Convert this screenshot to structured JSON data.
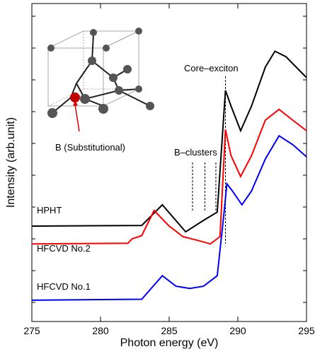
{
  "chart_data": {
    "type": "line",
    "x_label": "Photon energy (eV)",
    "y_label": "Intensity (arb.unit)",
    "xlim": [
      275,
      295
    ],
    "xticks": [
      275,
      280,
      285,
      290,
      295
    ],
    "ylim": [
      -0.6,
      9.4
    ],
    "yticks": [
      0,
      1,
      2,
      3,
      4,
      5,
      6,
      7,
      8,
      9
    ],
    "series": [
      {
        "name": "HPHT",
        "color": "#000000",
        "x": [
          275,
          283,
          284.5,
          286.2,
          287.5,
          288.5,
          289.1,
          289.5,
          290.2,
          291,
          292,
          292.7,
          293.5,
          294.5,
          295
        ],
        "values": [
          2.4,
          2.42,
          3.07,
          2.22,
          2.58,
          2.84,
          6.67,
          6.18,
          5.4,
          6.18,
          7.4,
          7.9,
          7.73,
          7.29,
          7.07
        ]
      },
      {
        "name": "HFCVD No.2",
        "color": "#ff0000",
        "x": [
          275,
          282,
          282.3,
          283,
          283.9,
          285,
          286,
          287,
          288,
          288.7,
          289.1,
          289.5,
          290.2,
          291,
          292,
          293,
          294,
          295
        ],
        "values": [
          1.84,
          1.86,
          2.0,
          2.1,
          2.89,
          2.4,
          2.07,
          1.96,
          1.84,
          2.07,
          5.44,
          4.62,
          3.96,
          4.62,
          5.73,
          6.07,
          5.73,
          5.4
        ]
      },
      {
        "name": "HFCVD No.1",
        "color": "#0000ff",
        "x": [
          275,
          283,
          284.5,
          285.5,
          286.5,
          287.5,
          288.5,
          289,
          289.2,
          289.6,
          290.3,
          291,
          292,
          293,
          294,
          295
        ],
        "values": [
          0.07,
          0.1,
          0.84,
          0.51,
          0.44,
          0.51,
          0.84,
          2.84,
          3.73,
          3.51,
          3.07,
          3.51,
          4.51,
          5.24,
          4.96,
          4.58
        ]
      }
    ],
    "annotations": {
      "core_exciton": "Core–exciton",
      "b_clusters": "B–clusters",
      "b_substitutional": "B (Substitutional)"
    },
    "core_exciton_x": 289.1,
    "b_cluster_x": [
      286.7,
      287.6,
      288.4
    ]
  }
}
